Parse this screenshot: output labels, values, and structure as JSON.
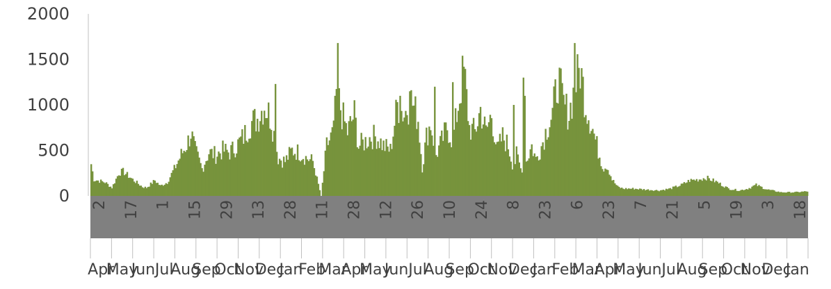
{
  "chart_data": {
    "type": "bar",
    "title": "",
    "xlabel": "",
    "ylabel": "",
    "ylim": [
      0,
      2000
    ],
    "grid": false,
    "y_ticks": [
      "0",
      "500",
      "1000",
      "1500",
      "2000"
    ],
    "color": "#77933c",
    "day_labels": [
      "2",
      "17",
      "1",
      "15",
      "29",
      "13",
      "28",
      "11",
      "28",
      "12",
      "26",
      "10",
      "24",
      "8",
      "23",
      "6",
      "23",
      "7",
      "21",
      "5",
      "19",
      "3",
      "18"
    ],
    "month_labels": [
      "Apr",
      "May",
      "Jun",
      "Jul",
      "Aug",
      "Sep",
      "Oct",
      "Nov",
      "Dec",
      "Jan",
      "Feb",
      "Mar",
      "Apr",
      "May",
      "Jun",
      "Jul",
      "Aug",
      "Sep",
      "Oct",
      "Nov",
      "Dec",
      "Jan",
      "Feb",
      "Mar",
      "Apr",
      "May",
      "Jun",
      "Jul",
      "Aug",
      "Sep",
      "Oct",
      "Nov",
      "Dec",
      "Jan"
    ],
    "series_points": [
      [
        0,
        350
      ],
      [
        2,
        180
      ],
      [
        10,
        150
      ],
      [
        15,
        90
      ],
      [
        20,
        250
      ],
      [
        23,
        270
      ],
      [
        30,
        180
      ],
      [
        37,
        100
      ],
      [
        40,
        90
      ],
      [
        46,
        170
      ],
      [
        50,
        110
      ],
      [
        55,
        150
      ],
      [
        60,
        300
      ],
      [
        66,
        480
      ],
      [
        70,
        600
      ],
      [
        72,
        700
      ],
      [
        75,
        500
      ],
      [
        80,
        300
      ],
      [
        85,
        480
      ],
      [
        90,
        450
      ],
      [
        95,
        500
      ],
      [
        100,
        480
      ],
      [
        105,
        550
      ],
      [
        110,
        650
      ],
      [
        115,
        800
      ],
      [
        120,
        850
      ],
      [
        125,
        1000
      ],
      [
        130,
        850
      ],
      [
        135,
        420
      ],
      [
        140,
        380
      ],
      [
        145,
        500
      ],
      [
        150,
        480
      ],
      [
        155,
        420
      ],
      [
        160,
        380
      ],
      [
        166,
        0
      ],
      [
        170,
        550
      ],
      [
        175,
        700
      ],
      [
        178,
        1100
      ],
      [
        181,
        900
      ],
      [
        185,
        700
      ],
      [
        190,
        900
      ],
      [
        193,
        550
      ],
      [
        198,
        600
      ],
      [
        202,
        650
      ],
      [
        206,
        650
      ],
      [
        211,
        550
      ],
      [
        216,
        500
      ],
      [
        221,
        1000
      ],
      [
        226,
        900
      ],
      [
        231,
        1050
      ],
      [
        236,
        850
      ],
      [
        239,
        300
      ],
      [
        242,
        650
      ],
      [
        245,
        800
      ],
      [
        249,
        450
      ],
      [
        253,
        600
      ],
      [
        257,
        750
      ],
      [
        261,
        600
      ],
      [
        265,
        1000
      ],
      [
        269,
        1400
      ],
      [
        273,
        750
      ],
      [
        277,
        700
      ],
      [
        281,
        950
      ],
      [
        285,
        700
      ],
      [
        289,
        900
      ],
      [
        293,
        500
      ],
      [
        297,
        650
      ],
      [
        301,
        550
      ],
      [
        305,
        300
      ],
      [
        307,
        450
      ],
      [
        310,
        300
      ],
      [
        314,
        380
      ],
      [
        318,
        550
      ],
      [
        321,
        400
      ],
      [
        325,
        550
      ],
      [
        329,
        750
      ],
      [
        333,
        900
      ],
      [
        337,
        1300
      ],
      [
        341,
        1000
      ],
      [
        345,
        900
      ],
      [
        349,
        1200
      ],
      [
        353,
        1400
      ],
      [
        357,
        1000
      ],
      [
        361,
        800
      ],
      [
        365,
        550
      ],
      [
        370,
        300
      ],
      [
        372,
        350
      ],
      [
        376,
        180
      ],
      [
        380,
        100
      ],
      [
        384,
        80
      ],
      [
        392,
        80
      ],
      [
        400,
        70
      ],
      [
        410,
        60
      ],
      [
        418,
        80
      ],
      [
        426,
        120
      ],
      [
        432,
        170
      ],
      [
        438,
        180
      ],
      [
        444,
        200
      ],
      [
        452,
        150
      ],
      [
        460,
        80
      ],
      [
        468,
        60
      ],
      [
        474,
        80
      ],
      [
        480,
        120
      ],
      [
        488,
        70
      ],
      [
        498,
        40
      ],
      [
        508,
        40
      ],
      [
        517,
        50
      ]
    ],
    "spikes": [
      [
        178,
        1680
      ],
      [
        133,
        1230
      ],
      [
        261,
        1250
      ],
      [
        248,
        1200
      ],
      [
        269,
        1420
      ],
      [
        312,
        1300
      ],
      [
        349,
        1680
      ],
      [
        176,
        1100
      ],
      [
        313,
        1100
      ],
      [
        305,
        1000
      ],
      [
        223,
        1100
      ],
      [
        230,
        1150
      ]
    ]
  }
}
